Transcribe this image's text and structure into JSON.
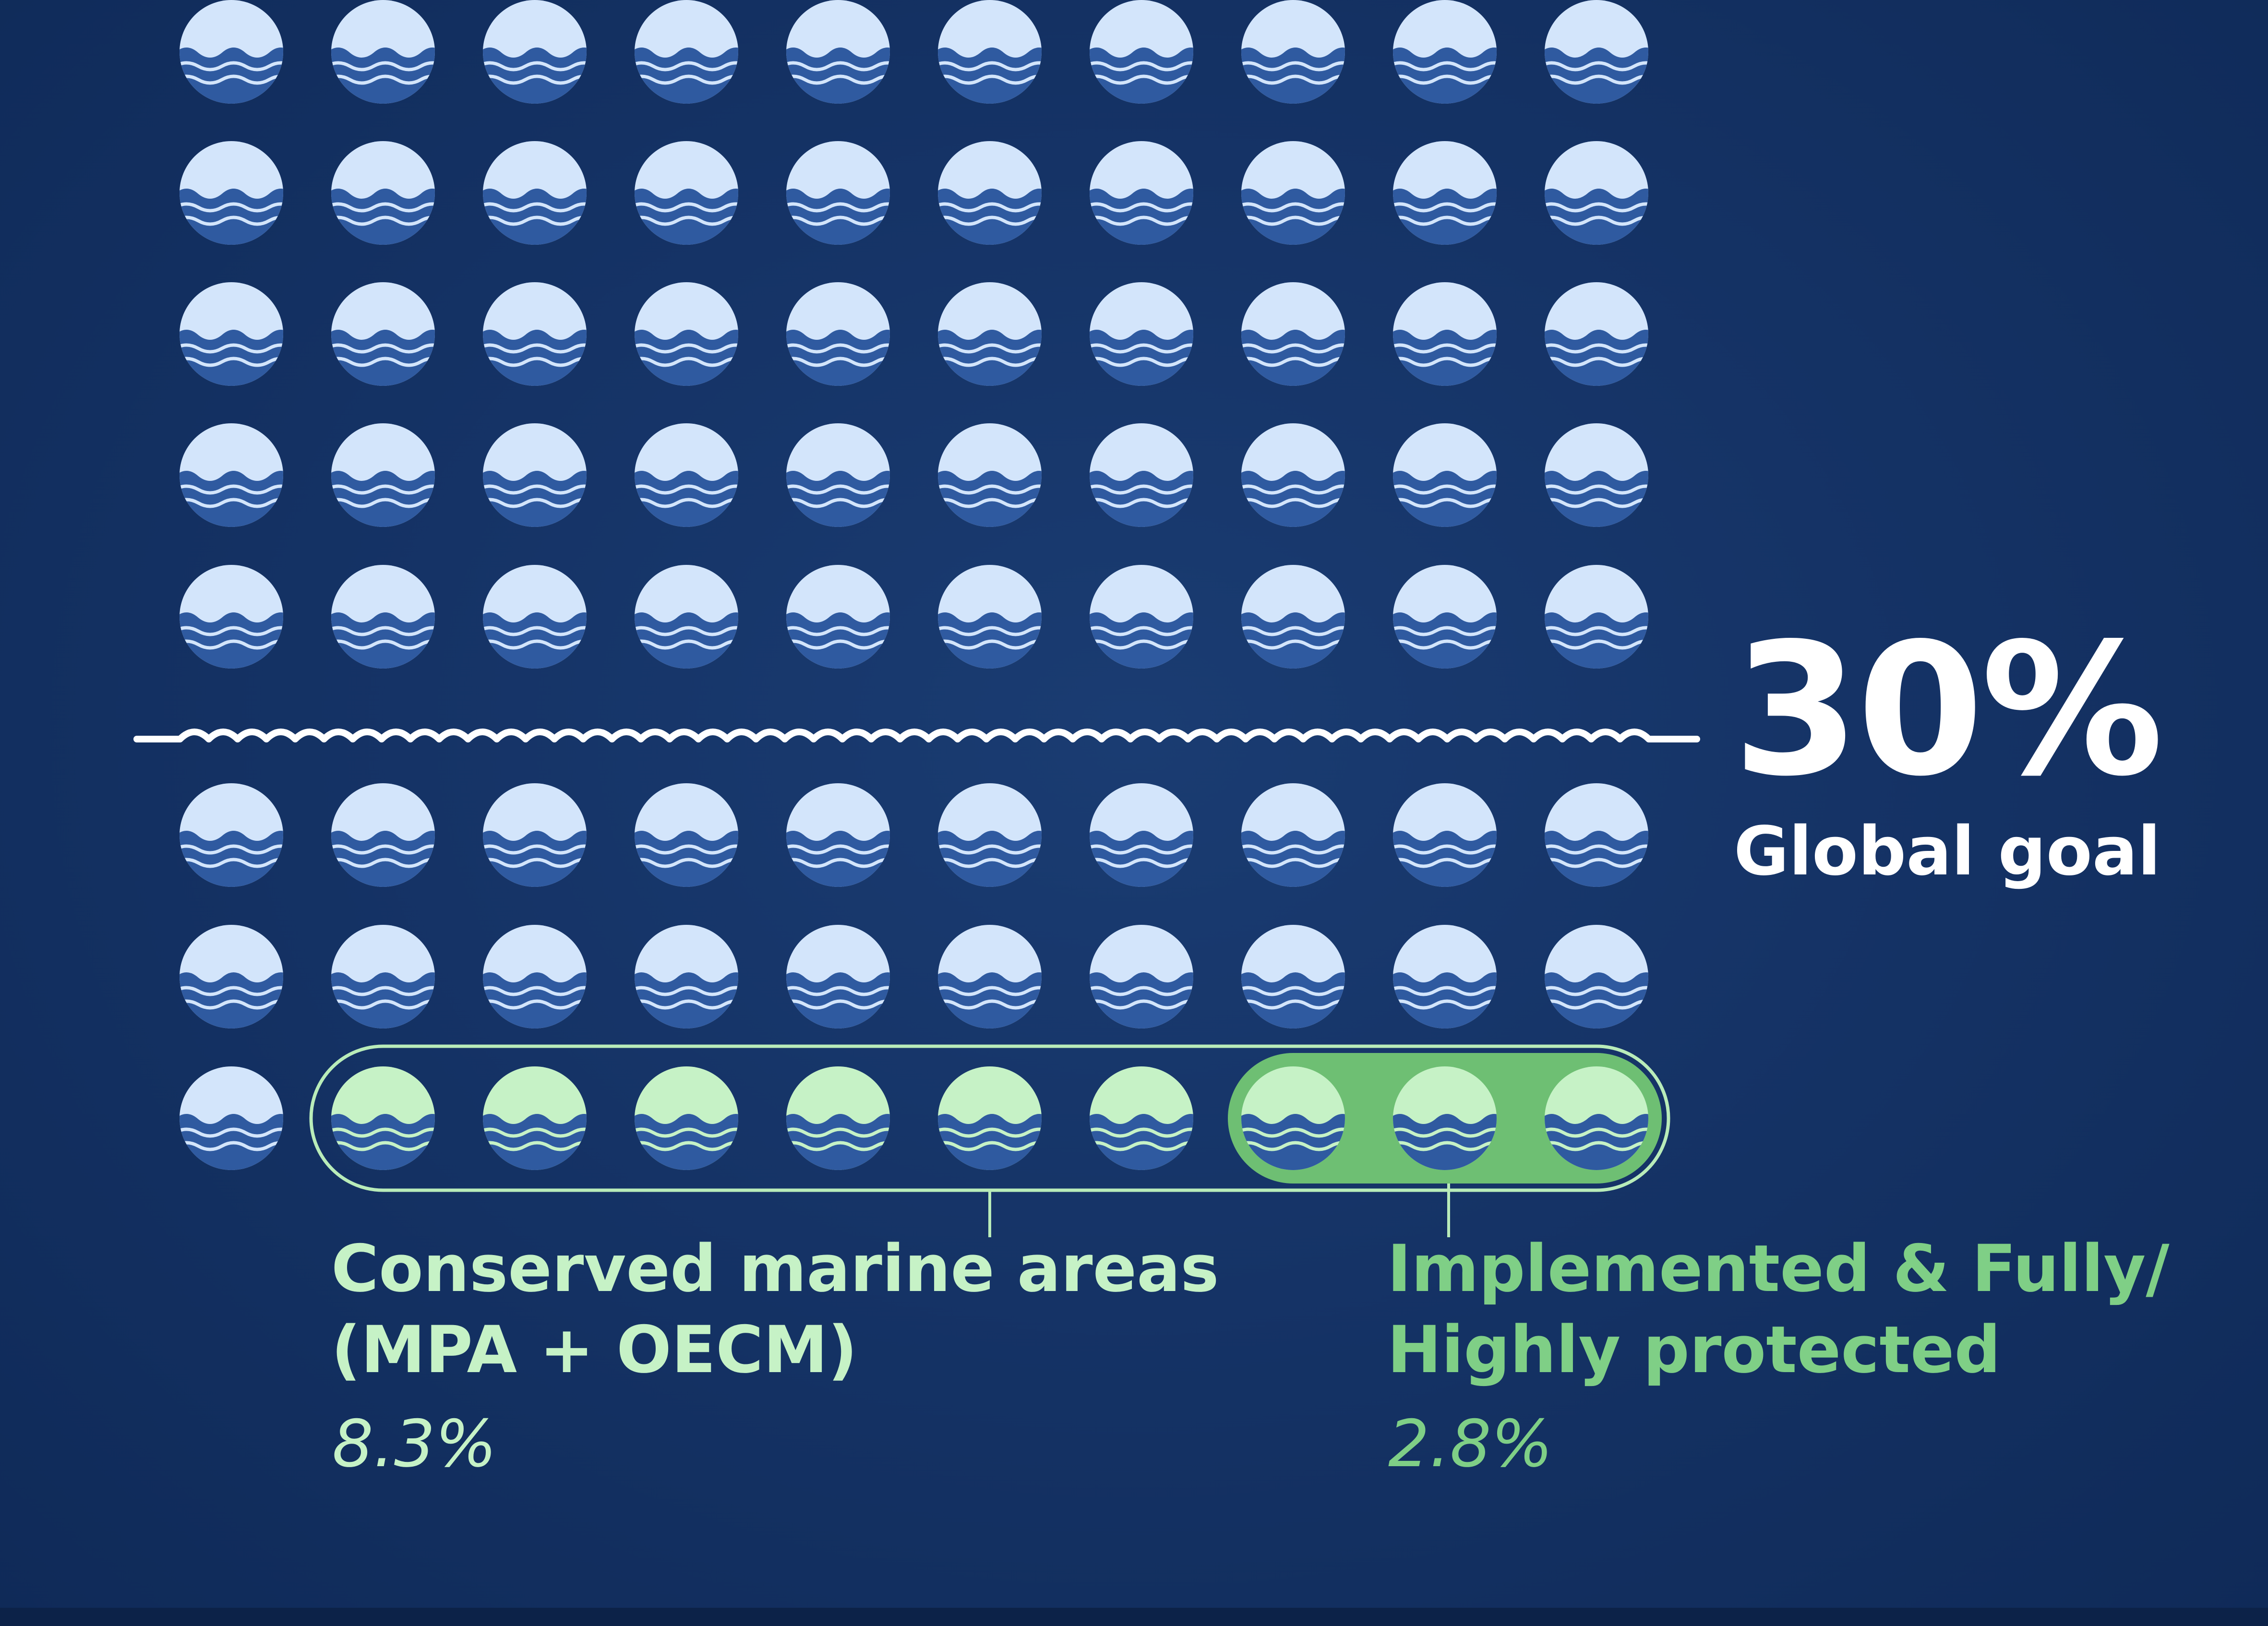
{
  "chart_data": {
    "type": "waffle",
    "total_units": 100,
    "units_per_row": 10,
    "row_groups": [
      5,
      3
    ],
    "series": [
      {
        "name": "Conserved marine areas (MPA + OECM)",
        "value": 8.3,
        "units": 9,
        "units_note": "highlighted group of 9 circles"
      },
      {
        "name": "Implemented & Fully/ Highly protected",
        "value": 2.8,
        "units": 3
      }
    ],
    "goal": {
      "value": 30,
      "display": "30%",
      "label": "Global goal"
    }
  },
  "labels": {
    "goal_value": "30%",
    "goal_label": "Global goal",
    "conserved_line1": "Conserved marine areas",
    "conserved_line2": "(MPA + OECM)",
    "conserved_pct": "8.3%",
    "protected_line1": "Implemented & Fully/",
    "protected_line2": "Highly protected",
    "protected_pct": "2.8%"
  },
  "colors": {
    "circle_default": "#d3e5fb",
    "circle_conserved": "#c6f2c6",
    "wave": "#2f5aa0",
    "protected_band": "#6ebf73",
    "conserved_outline": "#b9ecb9",
    "goal_line": "#ffffff",
    "text_goal": "#ffffff",
    "text_conserved": "#c6f2c6",
    "text_protected": "#7fcf86"
  },
  "icons": {
    "unit": "water-wave-icon"
  }
}
